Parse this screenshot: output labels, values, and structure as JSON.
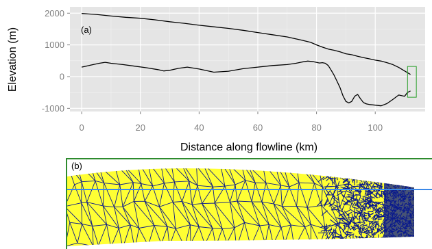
{
  "chart_data": [
    {
      "type": "line",
      "panel_label": "(a)",
      "xlabel": "Distance along flowline (km)",
      "ylabel": "Elevation (m)",
      "xlim": [
        -4,
        117
      ],
      "ylim": [
        -1100,
        2200
      ],
      "x_ticks": [
        0,
        20,
        40,
        60,
        80,
        100
      ],
      "y_ticks": [
        2000,
        1000,
        0,
        -1000
      ],
      "grid": true,
      "background": "#e5e5e5",
      "line_color": "#000000",
      "highlight_color": "#2ca02c",
      "series": [
        {
          "x": [
            0,
            5,
            10,
            15,
            20,
            25,
            30,
            35,
            40,
            45,
            50,
            55,
            60,
            65,
            70,
            75,
            78,
            80,
            82,
            84,
            86,
            88,
            90,
            92,
            94,
            96,
            98,
            100,
            102,
            104,
            106,
            108,
            110,
            112
          ],
          "values": [
            1990,
            1960,
            1910,
            1870,
            1840,
            1790,
            1730,
            1680,
            1620,
            1570,
            1520,
            1460,
            1390,
            1320,
            1250,
            1150,
            1080,
            1000,
            930,
            870,
            830,
            780,
            720,
            690,
            640,
            600,
            560,
            520,
            490,
            440,
            380,
            290,
            180,
            70
          ]
        },
        {
          "x": [
            0,
            3,
            6,
            8,
            10,
            14,
            18,
            22,
            26,
            28,
            30,
            33,
            36,
            40,
            45,
            50,
            55,
            60,
            65,
            70,
            73,
            75,
            77,
            79,
            81,
            82,
            83,
            84,
            85,
            86,
            87,
            88,
            89,
            90,
            91,
            92,
            93,
            94,
            95,
            96,
            97,
            98,
            100,
            102,
            104,
            106,
            108,
            110,
            111,
            112
          ],
          "values": [
            300,
            360,
            420,
            450,
            420,
            380,
            330,
            280,
            220,
            180,
            200,
            260,
            300,
            240,
            140,
            170,
            250,
            300,
            350,
            380,
            420,
            460,
            490,
            470,
            430,
            440,
            420,
            350,
            200,
            40,
            -150,
            -350,
            -600,
            -780,
            -830,
            -780,
            -620,
            -560,
            -700,
            -820,
            -860,
            -880,
            -900,
            -920,
            -850,
            -720,
            -580,
            -620,
            -500,
            -450
          ]
        }
      ],
      "highlight": {
        "x": [
          111,
          114
        ],
        "y": [
          -650,
          320
        ]
      }
    },
    {
      "type": "mesh",
      "panel_label": "(b)",
      "fill_color": "#ffff33",
      "edge_color": "#0a1a8c",
      "frame_color": "#2e8b2e",
      "waterline_color": "#3a88e8"
    }
  ]
}
